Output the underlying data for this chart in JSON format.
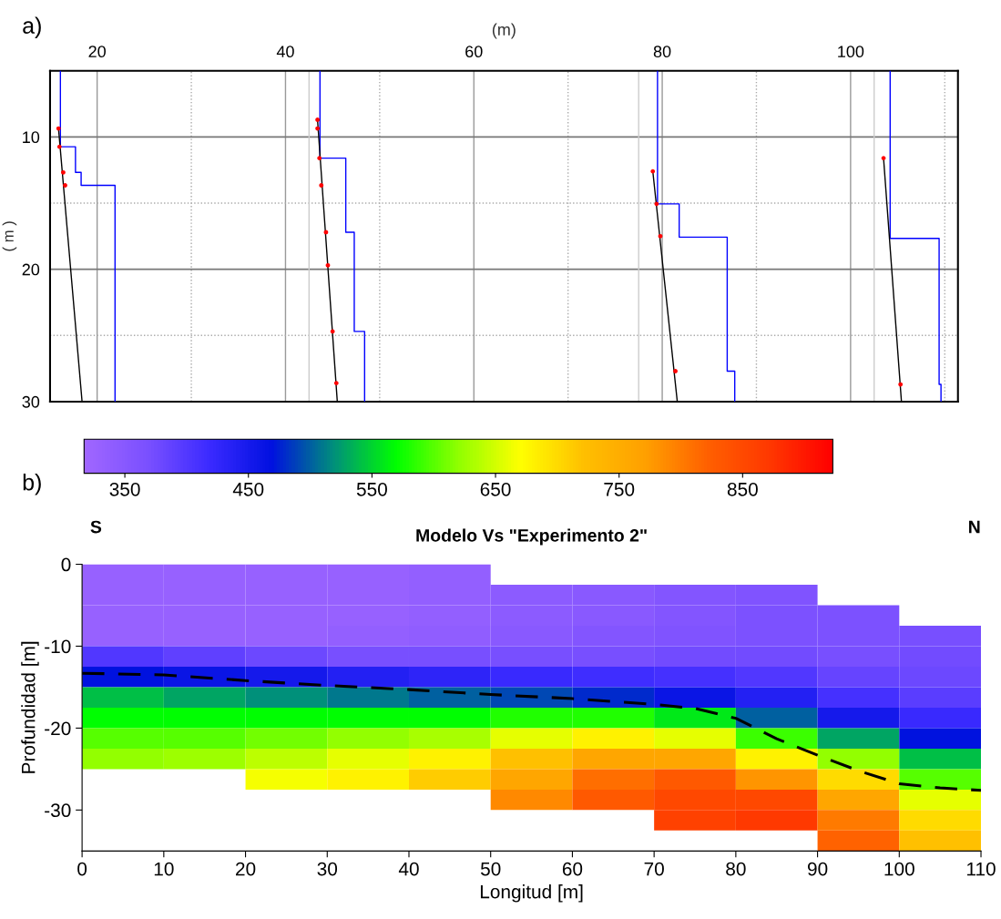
{
  "chart_data": [
    {
      "type": "line",
      "xlabel": "(m)",
      "ylabel": "( m )",
      "annotations": [
        "a)"
      ],
      "xlim": [
        15,
        111.4
      ],
      "xticks": [
        20,
        {
          "value": 30,
          "label": null
        },
        40,
        {
          "value": 50,
          "label": null
        },
        60,
        {
          "value": 70,
          "label": null
        },
        80,
        {
          "value": 90,
          "label": null
        },
        100,
        {
          "value": 110,
          "label": null
        }
      ],
      "ylim": [
        30,
        5
      ],
      "yticks": [
        10,
        {
          "value": 15,
          "label": null
        },
        20,
        {
          "value": 25,
          "label": null
        },
        30
      ],
      "grid": true,
      "ref_lines": [
        {
          "axis": "x",
          "value": 42.5,
          "color": "#cccccc"
        },
        {
          "axis": "x",
          "value": 77.5,
          "color": "#cccccc"
        },
        {
          "axis": "x",
          "value": 102.5,
          "color": "#cccccc"
        }
      ],
      "series": [
        {
          "color": "#0000ff",
          "x": [
            16.1,
            16.1,
            17.7,
            17.7,
            18.3,
            18.3,
            21.9,
            21.9
          ],
          "values": [
            5,
            10.74,
            10.74,
            12.68,
            12.68,
            13.66,
            13.66,
            30
          ]
        },
        {
          "color": "#0000ff",
          "x": [
            43.66,
            43.66,
            46.4,
            46.4,
            47.3,
            47.3,
            48.4,
            48.4
          ],
          "values": [
            5,
            11.6,
            11.6,
            17.2,
            17.2,
            24.7,
            24.7,
            30
          ]
        },
        {
          "color": "#0000ff",
          "x": [
            79.5,
            79.5,
            81.8,
            81.8,
            86.9,
            86.9,
            87.7,
            87.7
          ],
          "values": [
            5,
            15.06,
            15.06,
            17.57,
            17.57,
            27.7,
            27.7,
            30
          ]
        },
        {
          "color": "#0000ff",
          "x": [
            104.2,
            104.2,
            109.4,
            109.4,
            109.6,
            109.6
          ],
          "values": [
            5,
            17.67,
            17.67,
            28.7,
            28.7,
            30
          ]
        },
        {
          "color": "#000000",
          "x": [
            15.9,
            18.4
          ],
          "values": [
            9.36,
            30
          ]
        },
        {
          "color": "#000000",
          "x": [
            43.4,
            45.5
          ],
          "values": [
            8.7,
            30
          ]
        },
        {
          "color": "#000000",
          "x": [
            79.0,
            81.6
          ],
          "values": [
            12.6,
            30
          ]
        },
        {
          "color": "#000000",
          "x": [
            103.5,
            105.4
          ],
          "values": [
            11.6,
            30
          ]
        },
        {
          "type": "scatter",
          "color": "#ff0000",
          "x": [
            15.9,
            16.0,
            16.4,
            16.6,
            43.4,
            43.4,
            43.6,
            43.8,
            44.3,
            44.5,
            45.0,
            45.4,
            79.0,
            79.4,
            79.8,
            81.4,
            103.5,
            105.3
          ],
          "values": [
            9.36,
            10.74,
            12.68,
            13.66,
            8.7,
            9.36,
            11.6,
            13.66,
            17.2,
            19.7,
            24.7,
            28.6,
            12.6,
            15.06,
            17.5,
            27.7,
            11.6,
            28.7
          ]
        }
      ]
    },
    {
      "type": "heatmap",
      "title": "Modelo Vs \"Experimento 2\"",
      "xlabel": "Longitud [m]",
      "ylabel": "Profundidad [m]",
      "annotations": [
        "b)",
        "S",
        "N"
      ],
      "xlim": [
        0,
        110
      ],
      "xticks": [
        0,
        10,
        20,
        30,
        40,
        50,
        60,
        70,
        80,
        90,
        100,
        110
      ],
      "ylim": [
        -35,
        0
      ],
      "yticks": [
        -30,
        -20,
        -10,
        0
      ],
      "clim": [
        317,
        923
      ],
      "cticks": [
        350,
        450,
        550,
        650,
        750,
        850
      ],
      "colors": [
        "#a066ff",
        "#7a50ff",
        "#3a2aff",
        "#0010e0",
        "#00907a",
        "#00ff00",
        "#90ff00",
        "#ffff00",
        "#ffc000",
        "#ffa000",
        "#ff6000",
        "#ff3800",
        "#ff0000"
      ],
      "cells": [
        [
          330,
          330,
          330,
          330,
          335,
          null,
          null,
          null,
          null,
          null,
          null
        ],
        [
          330,
          330,
          330,
          330,
          335,
          345,
          350,
          355,
          360,
          null,
          null
        ],
        [
          330,
          330,
          330,
          330,
          335,
          345,
          350,
          355,
          365,
          365,
          null
        ],
        [
          330,
          330,
          330,
          335,
          340,
          350,
          355,
          360,
          365,
          365,
          370
        ],
        [
          400,
          390,
          380,
          370,
          370,
          370,
          370,
          375,
          375,
          370,
          375
        ],
        [
          470,
          460,
          450,
          440,
          430,
          420,
          415,
          410,
          400,
          385,
          380
        ],
        [
          540,
          530,
          520,
          510,
          500,
          490,
          480,
          460,
          440,
          410,
          395
        ],
        [
          570,
          570,
          570,
          570,
          570,
          580,
          580,
          560,
          500,
          450,
          420
        ],
        [
          600,
          600,
          610,
          620,
          630,
          660,
          680,
          660,
          590,
          530,
          470
        ],
        [
          620,
          625,
          640,
          660,
          680,
          720,
          760,
          760,
          680,
          620,
          540
        ],
        [
          null,
          null,
          665,
          680,
          710,
          760,
          810,
          830,
          780,
          700,
          600
        ],
        [
          null,
          null,
          null,
          null,
          null,
          790,
          830,
          850,
          850,
          760,
          660
        ],
        [
          null,
          null,
          null,
          null,
          null,
          null,
          null,
          860,
          870,
          800,
          700
        ],
        [
          null,
          null,
          null,
          null,
          null,
          null,
          null,
          null,
          null,
          820,
          720
        ]
      ],
      "series": [
        {
          "type": "line",
          "color": "#000000",
          "line_style": "dashed",
          "x": [
            0,
            10,
            20,
            30,
            40,
            50,
            60,
            70,
            75,
            80,
            85,
            90,
            95,
            100,
            105,
            110
          ],
          "values": [
            -13.3,
            -13.5,
            -14.2,
            -14.8,
            -15.3,
            -15.9,
            -16.4,
            -17.1,
            -17.6,
            -18.8,
            -21.3,
            -23.3,
            -25.2,
            -26.8,
            -27.3,
            -27.6
          ]
        }
      ]
    }
  ]
}
